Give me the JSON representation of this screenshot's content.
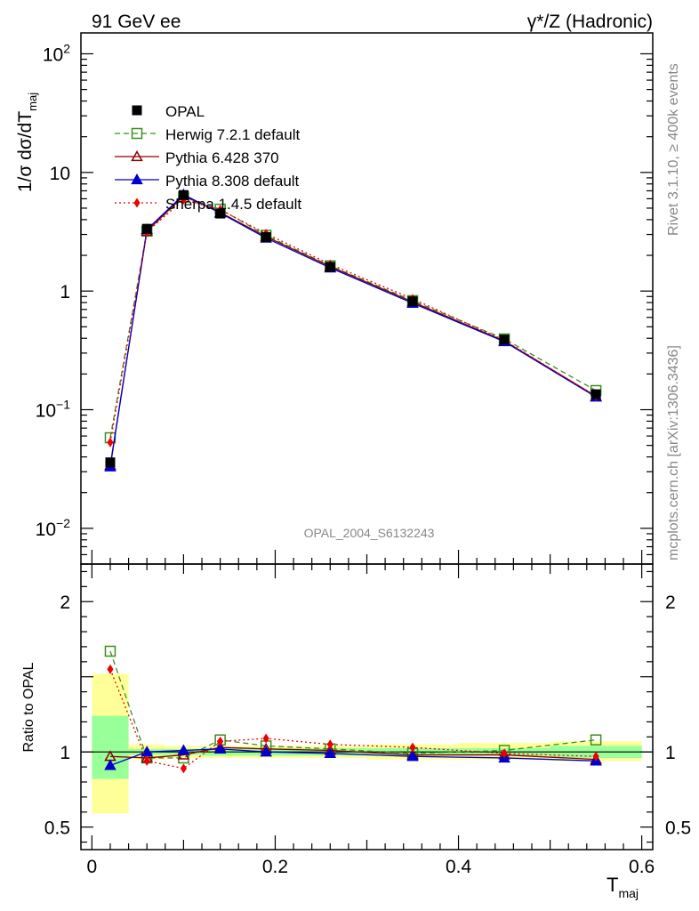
{
  "header": {
    "left": "91 GeV ee",
    "right": "γ*/Z (Hadronic)"
  },
  "side_labels": {
    "rivet": "Rivet 3.1.10, ≥ 400k events",
    "mcplots": "mcplots.cern.ch [arXiv:1306.3436]"
  },
  "watermark": "OPAL_2004_S6132243",
  "chart_data": {
    "type": "line",
    "title": "",
    "xlabel": "T",
    "xlabel_sub": "maj",
    "ylabel_main": "1/σ dσ/dT",
    "ylabel_main_sub": "maj",
    "ylabel_ratio": "Ratio to OPAL",
    "x_range": [
      -0.012,
      0.612
    ],
    "y_range_main": [
      0.005,
      150
    ],
    "y_scale_main": "log",
    "y_range_ratio": [
      0.35,
      2.25
    ],
    "x_tick_labels": [
      "0",
      "0.2",
      "0.4",
      "0.6"
    ],
    "x_tick_values": [
      0,
      0.2,
      0.4,
      0.6
    ],
    "y_tick_labels_main": [
      {
        "base": "10",
        "exp": "2",
        "v": 100
      },
      {
        "base": "10",
        "exp": "",
        "v": 10
      },
      {
        "base": "1",
        "exp": "",
        "v": 1
      },
      {
        "base": "10",
        "exp": "−1",
        "v": 0.1
      },
      {
        "base": "10",
        "exp": "−2",
        "v": 0.01
      }
    ],
    "y_tick_labels_ratio": [
      "0.5",
      "1",
      "2"
    ],
    "y_tick_values_ratio": [
      0.5,
      1,
      2
    ],
    "x": [
      0.02,
      0.06,
      0.1,
      0.14,
      0.19,
      0.26,
      0.35,
      0.45,
      0.55
    ],
    "bins": [
      [
        0,
        0.04
      ],
      [
        0.04,
        0.08
      ],
      [
        0.08,
        0.12
      ],
      [
        0.12,
        0.16
      ],
      [
        0.16,
        0.22
      ],
      [
        0.22,
        0.3
      ],
      [
        0.3,
        0.4
      ],
      [
        0.4,
        0.5
      ],
      [
        0.5,
        0.6
      ]
    ],
    "band_stat": [
      [
        0.82,
        1.24
      ],
      [
        0.98,
        1.02
      ],
      [
        0.98,
        1.02
      ],
      [
        0.975,
        1.025
      ],
      [
        0.975,
        1.025
      ],
      [
        0.975,
        1.025
      ],
      [
        0.975,
        1.025
      ],
      [
        0.975,
        1.025
      ],
      [
        0.96,
        1.04
      ]
    ],
    "band_total": [
      [
        0.59,
        1.52
      ],
      [
        0.95,
        1.05
      ],
      [
        0.96,
        1.04
      ],
      [
        0.96,
        1.04
      ],
      [
        0.96,
        1.04
      ],
      [
        0.96,
        1.04
      ],
      [
        0.95,
        1.05
      ],
      [
        0.95,
        1.06
      ],
      [
        0.94,
        1.07
      ]
    ],
    "series": [
      {
        "name": "OPAL",
        "color": "#000000",
        "marker": "square-filled",
        "line": "none",
        "values": [
          0.036,
          3.35,
          6.45,
          4.5,
          2.85,
          1.6,
          0.82,
          0.39,
          0.135
        ],
        "ratio": [
          1,
          1,
          1,
          1,
          1,
          1,
          1,
          1,
          1
        ]
      },
      {
        "name": "Herwig 7.2.1 default",
        "color": "#3a8f1f",
        "marker": "square-open",
        "line": "dashed",
        "values": [
          0.058,
          3.2,
          6.2,
          4.9,
          2.95,
          1.63,
          0.83,
          0.395,
          0.145
        ],
        "ratio": [
          1.67,
          0.96,
          0.96,
          1.08,
          1.04,
          1.02,
          0.99,
          1.01,
          1.08
        ]
      },
      {
        "name": "Pythia 6.428 370",
        "color": "#8b0000",
        "marker": "triangle-open",
        "line": "solid",
        "values": [
          0.034,
          3.2,
          6.35,
          4.6,
          2.88,
          1.61,
          0.81,
          0.38,
          0.13
        ],
        "ratio": [
          0.97,
          0.96,
          0.98,
          1.03,
          1.02,
          1.01,
          0.98,
          0.98,
          0.95
        ]
      },
      {
        "name": "Pythia 8.308 default",
        "color": "#0000cc",
        "marker": "triangle-filled",
        "line": "solid",
        "values": [
          0.033,
          3.3,
          6.5,
          4.55,
          2.8,
          1.57,
          0.79,
          0.375,
          0.128
        ],
        "ratio": [
          0.91,
          1.0,
          1.01,
          1.02,
          1.0,
          0.99,
          0.97,
          0.96,
          0.94
        ]
      },
      {
        "name": "Sherpa 1.4.5 default",
        "color": "#ee0000",
        "marker": "diamond-filled",
        "line": "dotted",
        "values": [
          0.053,
          3.15,
          5.9,
          4.85,
          3.05,
          1.68,
          0.86,
          0.385,
          0.13
        ],
        "ratio": [
          1.55,
          0.94,
          0.89,
          1.07,
          1.09,
          1.05,
          1.03,
          0.99,
          0.97
        ]
      }
    ]
  }
}
